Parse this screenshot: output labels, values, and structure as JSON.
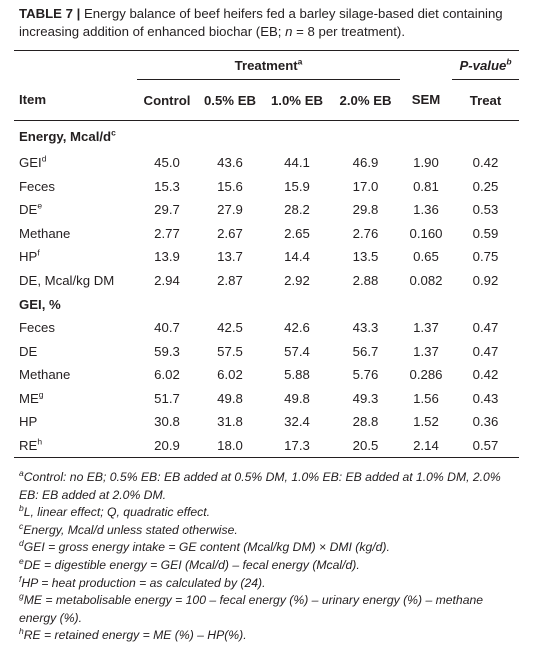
{
  "caption": {
    "table_label": "TABLE 7",
    "separator": " | ",
    "text": "Energy balance of beef heifers fed a barley silage-based diet containing increasing addition of enhanced biochar (EB; ",
    "n_italic": "n",
    "text_end": " = 8 per treatment)."
  },
  "header": {
    "treatment": "Treatment",
    "treatment_sup": "a",
    "pvalue": "P-value",
    "pvalue_sup": "b",
    "columns": [
      "Item",
      "Control",
      "0.5% EB",
      "1.0% EB",
      "2.0% EB",
      "SEM",
      "Treat"
    ]
  },
  "sections": [
    {
      "title": "Energy, Mcal/d",
      "title_sup": "c",
      "rows": [
        {
          "item": "GEI",
          "sup": "d",
          "values": [
            "45.0",
            "43.6",
            "44.1",
            "46.9",
            "1.90",
            "0.42"
          ]
        },
        {
          "item": "Feces",
          "sup": "",
          "values": [
            "15.3",
            "15.6",
            "15.9",
            "17.0",
            "0.81",
            "0.25"
          ]
        },
        {
          "item": "DE",
          "sup": "e",
          "values": [
            "29.7",
            "27.9",
            "28.2",
            "29.8",
            "1.36",
            "0.53"
          ]
        },
        {
          "item": "Methane",
          "sup": "",
          "values": [
            "2.77",
            "2.67",
            "2.65",
            "2.76",
            "0.160",
            "0.59"
          ]
        },
        {
          "item": "HP",
          "sup": "f",
          "values": [
            "13.9",
            "13.7",
            "14.4",
            "13.5",
            "0.65",
            "0.75"
          ]
        },
        {
          "item": "DE, Mcal/kg DM",
          "sup": "",
          "values": [
            "2.94",
            "2.87",
            "2.92",
            "2.88",
            "0.082",
            "0.92"
          ]
        }
      ]
    },
    {
      "title": "GEI, %",
      "title_sup": "",
      "rows": [
        {
          "item": "Feces",
          "sup": "",
          "values": [
            "40.7",
            "42.5",
            "42.6",
            "43.3",
            "1.37",
            "0.47"
          ]
        },
        {
          "item": "DE",
          "sup": "",
          "values": [
            "59.3",
            "57.5",
            "57.4",
            "56.7",
            "1.37",
            "0.47"
          ]
        },
        {
          "item": "Methane",
          "sup": "",
          "values": [
            "6.02",
            "6.02",
            "5.88",
            "5.76",
            "0.286",
            "0.42"
          ]
        },
        {
          "item": "ME",
          "sup": "g",
          "values": [
            "51.7",
            "49.8",
            "49.8",
            "49.3",
            "1.56",
            "0.43"
          ]
        },
        {
          "item": "HP",
          "sup": "",
          "values": [
            "30.8",
            "31.8",
            "32.4",
            "28.8",
            "1.52",
            "0.36"
          ]
        },
        {
          "item": "RE",
          "sup": "h",
          "values": [
            "20.9",
            "18.0",
            "17.3",
            "20.5",
            "2.14",
            "0.57"
          ]
        }
      ]
    }
  ],
  "footnotes": [
    {
      "mark": "a",
      "text": "Control: no EB; 0.5% EB: EB added at 0.5% DM, 1.0% EB: EB added at 1.0% DM, 2.0% EB: EB added at 2.0% DM."
    },
    {
      "mark": "b",
      "text": "L, linear effect; Q, quadratic effect."
    },
    {
      "mark": "c",
      "text": "Energy, Mcal/d unless stated otherwise."
    },
    {
      "mark": "d",
      "text": "GEI = gross energy intake = GE content (Mcal/kg DM) × DMI (kg/d)."
    },
    {
      "mark": "e",
      "text": "DE = digestible energy = GEI (Mcal/d) – fecal energy (Mcal/d)."
    },
    {
      "mark": "f",
      "text": "HP = heat production = as calculated by (24)."
    },
    {
      "mark": "g",
      "text": "ME = metabolisable energy = 100 – fecal energy (%) – urinary energy (%) – methane energy (%)."
    },
    {
      "mark": "h",
      "text": "RE = retained energy = ME (%) – HP(%)."
    }
  ]
}
